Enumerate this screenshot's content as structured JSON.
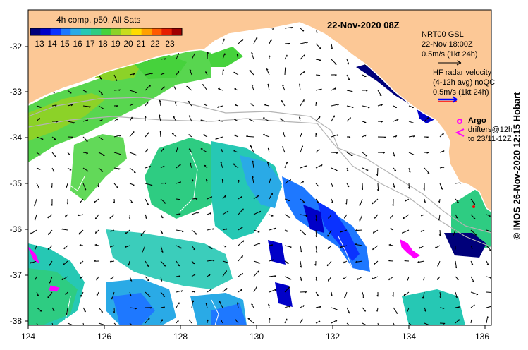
{
  "map": {
    "date_title": "22-Nov-2020 08Z",
    "colorbar": {
      "title": "4h comp, p50, All Sats",
      "ticks": [
        "13",
        "14",
        "15",
        "16",
        "17",
        "18",
        "19",
        "20",
        "21",
        "22",
        "23"
      ],
      "colors": [
        "#00007a",
        "#0000c8",
        "#0a32ff",
        "#1e78ff",
        "#2aaae6",
        "#26c8b4",
        "#2ecc82",
        "#46d23c",
        "#8cd228",
        "#c8dc1e",
        "#ffdc00",
        "#ffa000",
        "#ff5a00",
        "#e61e00",
        "#a00000"
      ]
    },
    "lon_labels": [
      "124",
      "126",
      "128",
      "130",
      "132",
      "134",
      "136"
    ],
    "lat_labels": [
      "-32",
      "-33",
      "-34",
      "-35",
      "-36",
      "-37",
      "-38"
    ],
    "legend": {
      "gsl": [
        "NRT00 GSL",
        "22-Nov 18:00Z",
        "0.5m/s (1kt 24h)"
      ],
      "radar": [
        "HF radar velocity",
        "(4-12h avg) noQC",
        "0.5m/s (1kt 24h)"
      ],
      "argo": "Argo",
      "drifters": [
        "drifters@12h",
        "to 23/11-12Z"
      ]
    },
    "credit": "© IMOS 26-Nov-2020 12:15 Hobart",
    "colors": {
      "land": "#fcc896",
      "argo": "#ff00ff",
      "radar": "#ff0000",
      "vector": "#000000",
      "isobath": "#b4b4b4",
      "coast": "#ffffff"
    }
  }
}
